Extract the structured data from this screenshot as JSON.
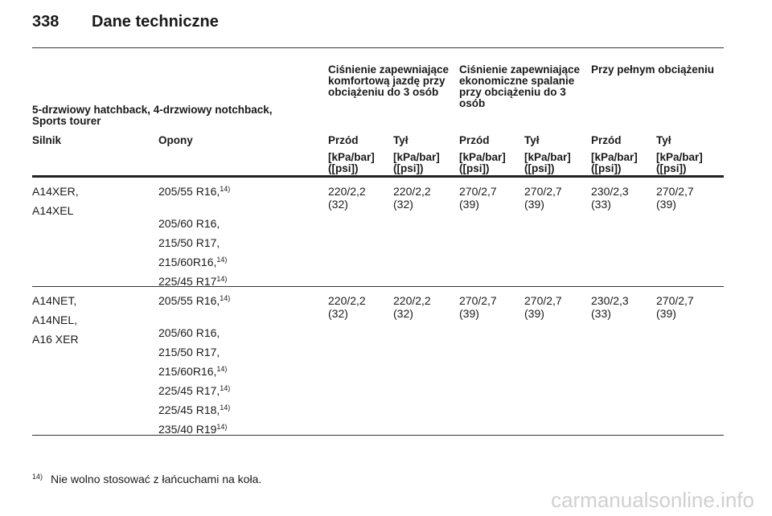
{
  "page": {
    "number": "338",
    "title": "Dane techniczne"
  },
  "table": {
    "vehicle_header": "5-drzwiowy hatchback, 4-drzwiowy notchback, Sports tourer",
    "group_headers": [
      "Ciśnienie zapewniające komfortową jazdę przy obciążeniu do 3 osób",
      "Ciśnienie zapewniające ekonomiczne spalanie przy obciążeniu do 3 osób",
      "Przy pełnym obciążeniu"
    ],
    "col_engine": "Silnik",
    "col_tyres": "Opony",
    "axle_labels": [
      "Przód",
      "Tył",
      "Przód",
      "Tył",
      "Przód",
      "Tył"
    ],
    "unit_label_1": "[kPa/bar]",
    "unit_label_2": "([psi])",
    "rows": [
      {
        "engines": [
          "A14XER,",
          "A14XEL"
        ],
        "tyres": [
          "205/55 R16,",
          "205/60 R16,",
          "215/50 R17,",
          "215/60R16,",
          "225/45 R17"
        ],
        "tyre_notes": [
          "14)",
          "",
          "",
          "14)",
          "14)"
        ],
        "pressures": [
          "220/2,2",
          "220/2,2",
          "270/2,7",
          "270/2,7",
          "230/2,3",
          "270/2,7"
        ],
        "psi": [
          "(32)",
          "(32)",
          "(39)",
          "(39)",
          "(33)",
          "(39)"
        ]
      },
      {
        "engines": [
          "A14NET,",
          "A14NEL,",
          "A16 XER"
        ],
        "tyres": [
          "205/55 R16,",
          "205/60 R16,",
          "215/50 R17,",
          "215/60R16,",
          "225/45 R17,",
          "225/45 R18,",
          "235/40 R19"
        ],
        "tyre_notes": [
          "14)",
          "",
          "",
          "14)",
          "14)",
          "14)",
          "14)"
        ],
        "pressures": [
          "220/2,2",
          "220/2,2",
          "270/2,7",
          "270/2,7",
          "230/2,3",
          "270/2,7"
        ],
        "psi": [
          "(32)",
          "(32)",
          "(39)",
          "(39)",
          "(33)",
          "(39)"
        ]
      }
    ]
  },
  "footnote": {
    "mark": "14)",
    "text": "Nie wolno stosować z łańcuchami na koła."
  },
  "watermark": "carmanualsonline.info"
}
